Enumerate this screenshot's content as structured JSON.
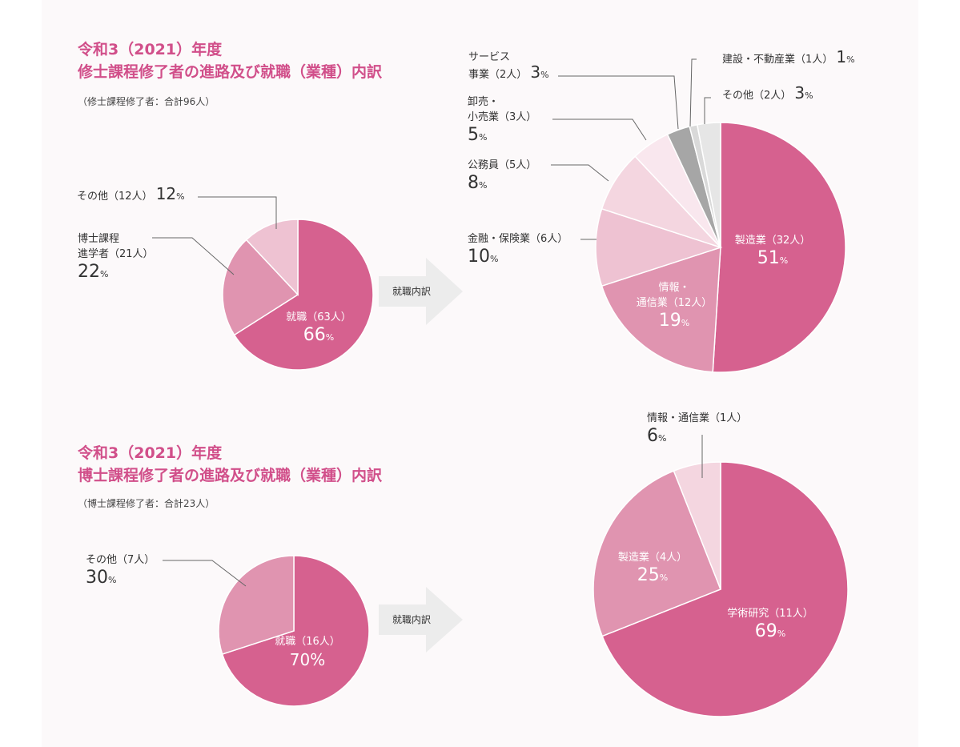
{
  "colors": {
    "accent": "#d14f8a",
    "c1": "#d6618f",
    "c2": "#e094b0",
    "c3": "#eec2d2",
    "c4": "#f4d6e0",
    "c5": "#f9e7ee",
    "gray_dark": "#a6a6a6",
    "gray_light": "#d9d9d9",
    "gray_lighter": "#e6e6e6"
  },
  "master": {
    "title_line1": "令和3（2021）年度",
    "title_line2": "修士課程修了者の進路及び就職（業種）内訳",
    "subtitle": "（修士課程修了者：合計96人）",
    "arrow_label": "就職内訳"
  },
  "doctor": {
    "title_line1": "令和3（2021）年度",
    "title_line2": "博士課程修了者の進路及び就職（業種）内訳",
    "subtitle": "（博士課程修了者：合計23人）",
    "arrow_label": "就職内訳"
  },
  "chart_data": [
    {
      "type": "pie",
      "slices": [
        {
          "label": "就職（63人）",
          "value": 66,
          "pct_text": "66",
          "color": "#d6618f"
        },
        {
          "label_line1": "博士課程",
          "label_line2": "進学者（21人）",
          "value": 22,
          "pct_text": "22",
          "color": "#e094b0"
        },
        {
          "label": "その他（12人）",
          "value": 12,
          "pct_text": "12",
          "color": "#eec2d2"
        }
      ]
    },
    {
      "type": "pie",
      "slices": [
        {
          "label": "製造業（32人）",
          "value": 51,
          "pct_text": "51",
          "color": "#d6618f"
        },
        {
          "label_line1": "情報・",
          "label_line2": "通信業（12人）",
          "value": 19,
          "pct_text": "19",
          "color": "#e094b0"
        },
        {
          "label": "金融・保険業（6人）",
          "value": 10,
          "pct_text": "10",
          "color": "#eec2d2"
        },
        {
          "label": "公務員（5人）",
          "value": 8,
          "pct_text": "8",
          "color": "#f4d6e0"
        },
        {
          "label_line1": "卸売・",
          "label_line2": "小売業（3人）",
          "value": 5,
          "pct_text": "5",
          "color": "#f9e7ee"
        },
        {
          "label_line1": "サービス",
          "label_line2": "事業（2人）",
          "value": 3,
          "pct_text": "3",
          "color": "#a6a6a6"
        },
        {
          "label": "建設・不動産業（1人）",
          "value": 1,
          "pct_text": "1",
          "color": "#d9d9d9"
        },
        {
          "label": "その他（2人）",
          "value": 3,
          "pct_text": "3",
          "color": "#e6e6e6"
        }
      ]
    },
    {
      "type": "pie",
      "slices": [
        {
          "label": "就職（16人）",
          "value": 70,
          "pct_text": "70%",
          "color": "#d6618f"
        },
        {
          "label": "その他（7人）",
          "value": 30,
          "pct_text": "30",
          "color": "#e094b0"
        }
      ]
    },
    {
      "type": "pie",
      "slices": [
        {
          "label": "学術研究（11人）",
          "value": 69,
          "pct_text": "69",
          "color": "#d6618f"
        },
        {
          "label": "製造業（4人）",
          "value": 25,
          "pct_text": "25",
          "color": "#e094b0"
        },
        {
          "label": "情報・通信業（1人）",
          "value": 6,
          "pct_text": "6",
          "color": "#f4d6e0"
        }
      ]
    }
  ]
}
